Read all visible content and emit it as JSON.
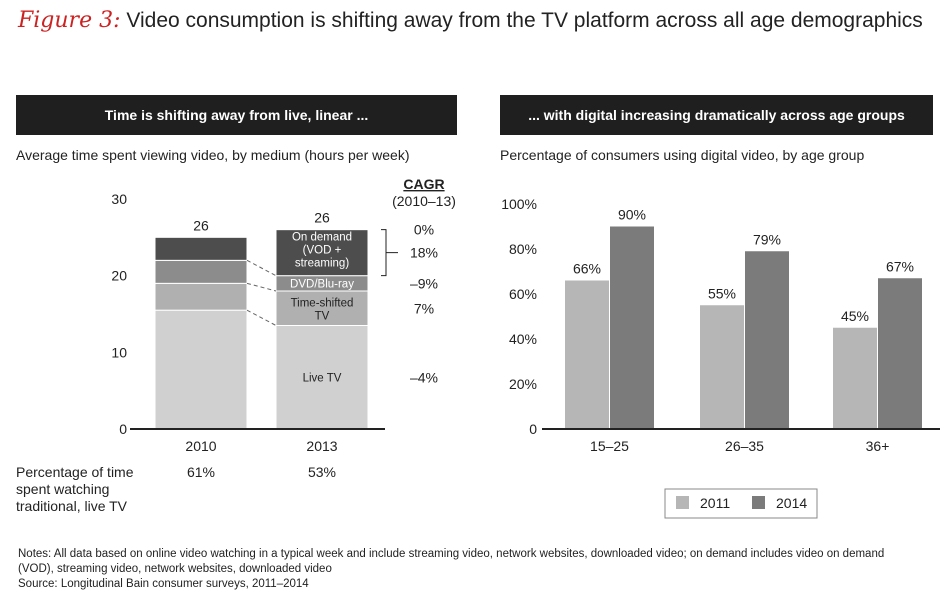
{
  "figure": {
    "label": "Figure 3:",
    "title": "Video consumption is shifting away from the TV platform across all age demographics"
  },
  "colors": {
    "live": "#d0d0d0",
    "timeshift": "#b0b0b0",
    "dvd": "#8c8c8c",
    "ondemand": "#4d4d4d",
    "y2011": "#b6b6b6",
    "y2014": "#7b7b7b",
    "header_bg": "#1f1f1f"
  },
  "left_panel": {
    "header": "Time is shifting away from live, linear ...",
    "subtitle": "Average time spent viewing video, by medium (hours per week)",
    "cagr_title": "CAGR",
    "cagr_period": "(2010–13)",
    "cagr_values": [
      "0%",
      "18%",
      "–9%",
      "7%",
      "–4%"
    ],
    "pct_label_lines": [
      "Percentage of time",
      "spent watching",
      "traditional, live TV"
    ],
    "pct_values": [
      "61%",
      "53%"
    ]
  },
  "right_panel": {
    "header": "... with digital increasing dramatically across age groups",
    "subtitle": "Percentage of consumers using digital video, by age group"
  },
  "chart_data": [
    {
      "type": "bar",
      "stacked": true,
      "title": "Average time spent viewing video, by medium (hours per week)",
      "categories": [
        "2010",
        "2013"
      ],
      "totals": [
        "26",
        "26"
      ],
      "yticks": [
        "0",
        "10",
        "20",
        "30"
      ],
      "ylim": [
        0,
        30
      ],
      "segment_labels": [
        "Live TV",
        "Time-shifted",
        "TV",
        "DVD/Blu-ray",
        "On demand",
        "(VOD +",
        "streaming)"
      ],
      "series": [
        {
          "name": "Live TV",
          "values": [
            15.5,
            13.5
          ]
        },
        {
          "name": "Time-shifted TV",
          "values": [
            3.5,
            4.5
          ]
        },
        {
          "name": "DVD/Blu-ray",
          "values": [
            3.0,
            2.0
          ]
        },
        {
          "name": "On demand (VOD + streaming)",
          "values": [
            3.0,
            6.0
          ]
        }
      ]
    },
    {
      "type": "bar",
      "title": "Percentage of consumers using digital video, by age group",
      "categories": [
        "15–25",
        "26–35",
        "36+"
      ],
      "yticks": [
        "0",
        "20%",
        "40%",
        "60%",
        "80%",
        "100%"
      ],
      "ylim": [
        0,
        100
      ],
      "series": [
        {
          "name": "2011",
          "values": [
            66,
            55,
            45
          ],
          "labels": [
            "66%",
            "55%",
            "45%"
          ]
        },
        {
          "name": "2014",
          "values": [
            90,
            79,
            67
          ],
          "labels": [
            "90%",
            "79%",
            "67%"
          ]
        }
      ],
      "legend": "bottom"
    }
  ],
  "notes": {
    "line1": "Notes: All data based on online video watching in a typical week and include streaming video, network websites, downloaded video; on demand includes video on demand",
    "line2": "(VOD), streaming video, network websites, downloaded video",
    "source": "Source: Longitudinal Bain consumer surveys, 2011–2014"
  }
}
